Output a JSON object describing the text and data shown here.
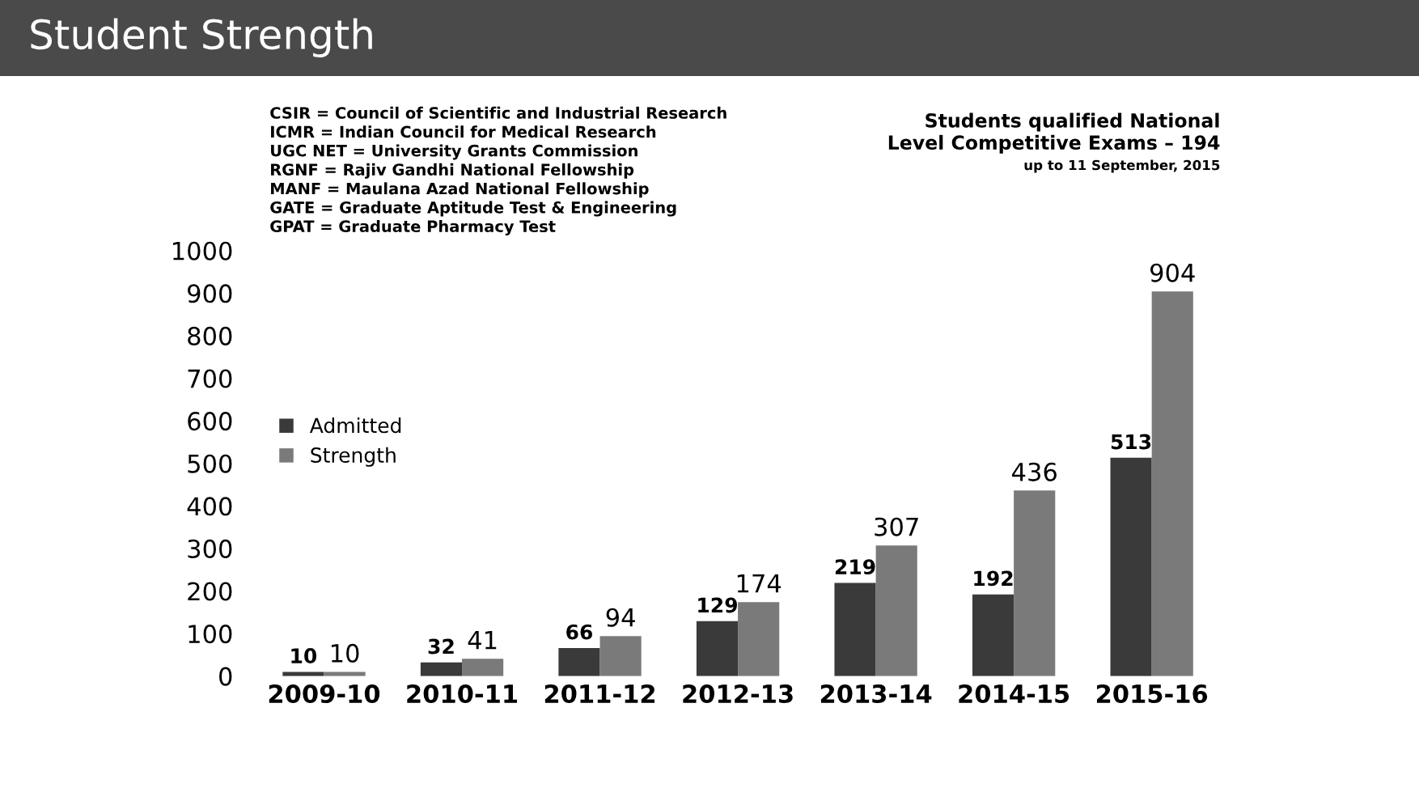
{
  "chart_data": {
    "type": "bar",
    "title": "Student Strength",
    "categories": [
      "2009-10",
      "2010-11",
      "2011-12",
      "2012-13",
      "2013-14",
      "2014-15",
      "2015-16"
    ],
    "series": [
      {
        "name": "Admitted",
        "color": "#3a3a3a",
        "values": [
          10,
          32,
          66,
          129,
          219,
          192,
          513
        ]
      },
      {
        "name": "Strength",
        "color": "#7a7a7a",
        "values": [
          10,
          41,
          94,
          174,
          307,
          436,
          904
        ]
      }
    ],
    "ylim": [
      0,
      1000
    ],
    "yticks": [
      0,
      100,
      200,
      300,
      400,
      500,
      600,
      700,
      800,
      900,
      1000
    ],
    "data_labels": true,
    "legend": "left",
    "grid": false,
    "annotations": [
      "CSIR = Council of Scientific and Industrial Research",
      "ICMR = Indian Council for Medical Research",
      "UGC NET = University Grants Commission",
      "RGNF = Rajiv Gandhi National Fellowship",
      "MANF = Maulana Azad National Fellowship",
      "GATE = Graduate Aptitude Test & Engineering",
      "GPAT = Graduate Pharmacy Test",
      "Students qualified National",
      "Level Competitive Exams – 194",
      "up to 11 September, 2015"
    ]
  }
}
